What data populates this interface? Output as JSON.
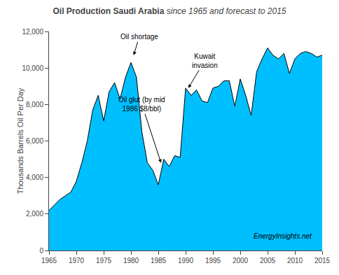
{
  "chart_data": {
    "type": "area",
    "title": "Oil Production Saudi Arabia",
    "subtitle": "since 1965 and forecast to 2015",
    "ylabel": "Thousands Barrels Oil Per Day",
    "color": "#00BFFF",
    "grid": false,
    "xlim": [
      1965,
      2015
    ],
    "ylim": [
      0,
      12000
    ],
    "xticks": [
      1965,
      1970,
      1975,
      1980,
      1985,
      1990,
      1995,
      2000,
      2005,
      2010,
      2015
    ],
    "yticks": [
      0,
      {
        "value": 2000,
        "label": "2,000"
      },
      {
        "value": 4000,
        "label": "4,000"
      },
      {
        "value": 6000,
        "label": "6,000"
      },
      {
        "value": 8000,
        "label": "8,000"
      },
      {
        "value": 10000,
        "label": "10,000"
      },
      {
        "value": 12000,
        "label": "12,000"
      }
    ],
    "x": [
      1965,
      1966,
      1967,
      1968,
      1969,
      1970,
      1971,
      1972,
      1973,
      1974,
      1975,
      1976,
      1977,
      1978,
      1979,
      1980,
      1981,
      1982,
      1983,
      1984,
      1985,
      1986,
      1987,
      1988,
      1989,
      1990,
      1991,
      1992,
      1993,
      1994,
      1995,
      1996,
      1997,
      1998,
      1999,
      2000,
      2001,
      2002,
      2003,
      2004,
      2005,
      2006,
      2007,
      2008,
      2009,
      2010,
      2011,
      2012,
      2013,
      2014,
      2015
    ],
    "values": [
      2200,
      2500,
      2800,
      3000,
      3200,
      3800,
      4800,
      6000,
      7700,
      8500,
      7100,
      8700,
      9200,
      8300,
      9500,
      10300,
      9500,
      6500,
      4800,
      4400,
      3600,
      5000,
      4600,
      5200,
      5100,
      8900,
      8500,
      8800,
      8200,
      8100,
      8900,
      9000,
      9300,
      9300,
      7900,
      9400,
      8500,
      7400,
      9800,
      10500,
      11100,
      10700,
      10500,
      10800,
      9700,
      10500,
      10800,
      10900,
      10800,
      10600,
      10700
    ],
    "annotations": [
      {
        "text": "Oil shortage",
        "x": 1980.5,
        "y": 10700,
        "text_x": 1981.5,
        "text_y": 11700
      },
      {
        "text": "Oil glut (by mid\n1986 $8/bbl)",
        "x": 1985.5,
        "y": 4800,
        "text_x": 1982.0,
        "text_y": 8000
      },
      {
        "text": "Kuwait\ninvasion",
        "x": 1990.5,
        "y": 8900,
        "text_x": 1993.5,
        "text_y": 10400
      },
      {
        "text": "EnergyInsights.net"
      }
    ]
  }
}
